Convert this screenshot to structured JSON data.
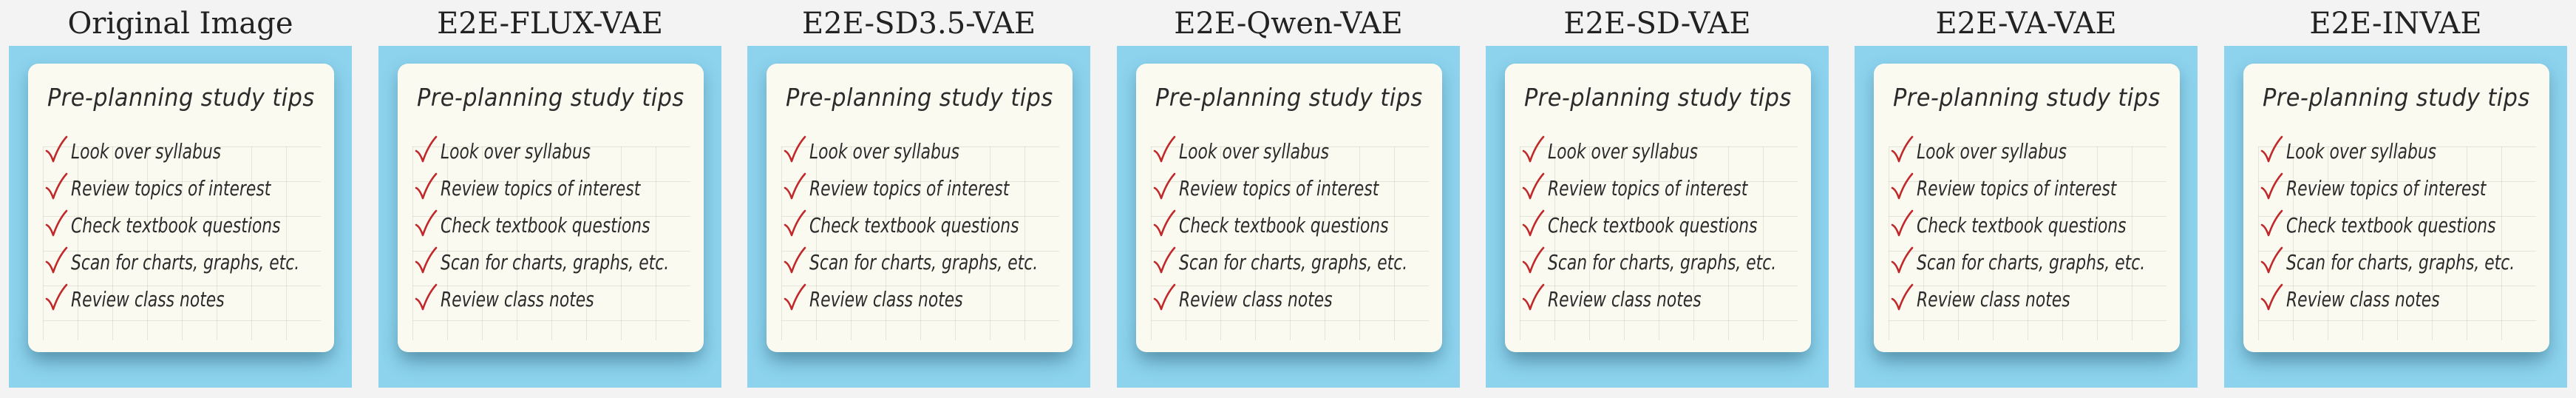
{
  "panels": [
    {
      "title": "Original Image"
    },
    {
      "title": "E2E-FLUX-VAE"
    },
    {
      "title": "E2E-SD3.5-VAE"
    },
    {
      "title": "E2E-Qwen-VAE"
    },
    {
      "title": "E2E-SD-VAE"
    },
    {
      "title": "E2E-VA-VAE"
    },
    {
      "title": "E2E-INVAE"
    }
  ],
  "note": {
    "title": "Pre-planning study tips",
    "tips": [
      "Look over syllabus",
      "Review topics of interest",
      "Check textbook questions",
      "Scan for charts, graphs, etc.",
      "Review class notes"
    ]
  },
  "colors": {
    "background": "#8dd3ee",
    "paper": "#fbfaf0",
    "check": "#c0282a",
    "ink": "#2b2b2b"
  },
  "icons": {
    "check": "check-mark-icon"
  }
}
